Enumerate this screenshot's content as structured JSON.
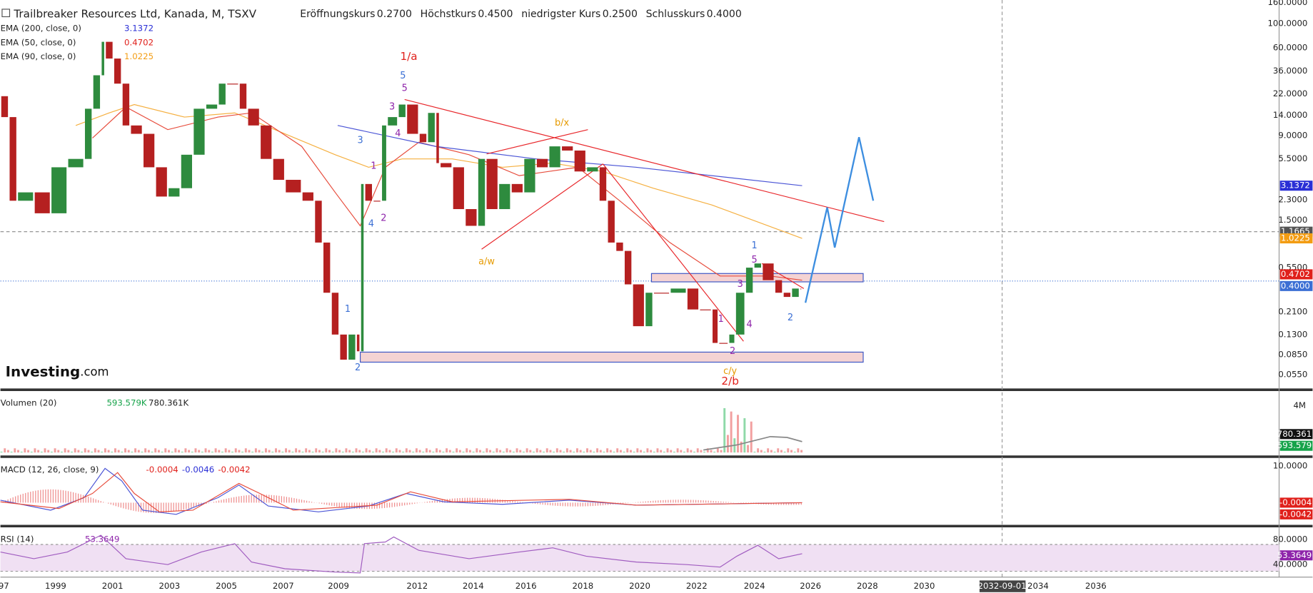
{
  "header": {
    "title": "Trailbreaker Resources Ltd, Kanada, M, TSXV",
    "ohlc": [
      {
        "label": "Eröffnungskurs",
        "value": "0.2700"
      },
      {
        "label": "Höchstkurs",
        "value": "0.4500"
      },
      {
        "label": "niedrigster Kurs",
        "value": "0.2500"
      },
      {
        "label": "Schlusskurs",
        "value": "0.4000"
      }
    ]
  },
  "indicators": [
    {
      "label": "EMA (200, close, 0)",
      "value": "3.1372",
      "color": "#2a2fd6"
    },
    {
      "label": "EMA (50, close, 0)",
      "value": "0.4702",
      "color": "#e0201b"
    },
    {
      "label": "EMA (90, close, 0)",
      "value": "1.0225",
      "color": "#f39c12"
    }
  ],
  "logo": {
    "brand": "Investing",
    "suffix": ".com"
  },
  "price_axis": {
    "ticks": [
      "160.0000",
      "100.0000",
      "60.0000",
      "36.0000",
      "22.0000",
      "14.0000",
      "9.0000",
      "5.5000",
      "2.3000",
      "1.5000",
      "0.5500",
      "0.2100",
      "0.1300",
      "0.0850",
      "0.0550"
    ],
    "badges": [
      {
        "label": "3.1372",
        "color": "#2a2fd6"
      },
      {
        "label": "1.1665",
        "color": "#555555"
      },
      {
        "label": "1.0225",
        "color": "#f39c12"
      },
      {
        "label": "0.4702",
        "color": "#e0201b"
      },
      {
        "label": "0.4000",
        "color": "#3b6fd4"
      }
    ]
  },
  "waves": [
    "1/a",
    "5",
    "5",
    "3",
    "4",
    "3",
    "1",
    "4",
    "2",
    "b/x",
    "a/w",
    "1",
    "2",
    "1",
    "5",
    "3",
    "4",
    "2",
    "1",
    "2",
    "c/y",
    "2/b"
  ],
  "volume": {
    "label": "Volumen (20)",
    "values": [
      "593.579K",
      "780.361K"
    ],
    "tick": "4M",
    "badges": [
      "780.361",
      "593.579"
    ]
  },
  "macd": {
    "label": "MACD (12, 26, close, 9)",
    "values": [
      "-0.0004",
      "-0.0046",
      "-0.0042"
    ],
    "tick": "10.0000",
    "badges": [
      "-0.0004",
      "-0.0042"
    ]
  },
  "rsi": {
    "label": "RSI (14)",
    "value": "53.3649",
    "ticks": [
      "80.0000",
      "40.0000"
    ],
    "badge": "53.3649"
  },
  "time_axis": {
    "labels": [
      "97",
      "1999",
      "2001",
      "2003",
      "2005",
      "2007",
      "2009",
      "2012",
      "2014",
      "2016",
      "2018",
      "2020",
      "2022",
      "2024",
      "2026",
      "2028",
      "2030",
      "2034",
      "2036"
    ],
    "cursor": "2032-09-01"
  }
}
